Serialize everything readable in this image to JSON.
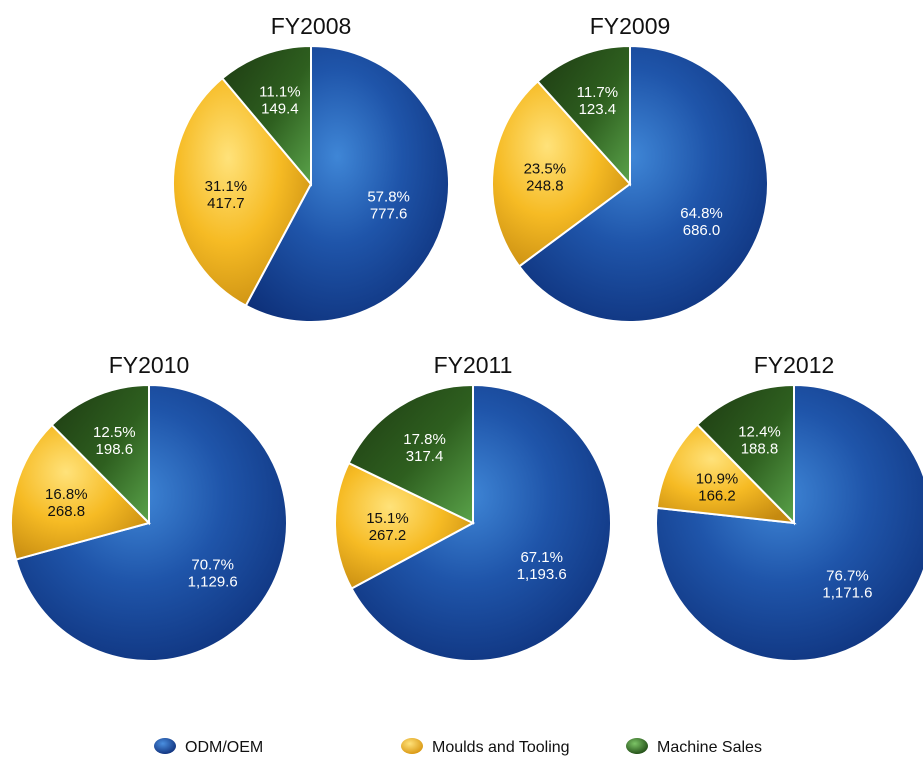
{
  "colors": {
    "odm_oem": "#1d4fa6",
    "moulds_tooling": "#f3b92a",
    "machine_sales": "#2f6a22"
  },
  "legend": [
    {
      "key": "odm_oem",
      "label": "ODM/OEM"
    },
    {
      "key": "moulds_tooling",
      "label": "Moulds and Tooling"
    },
    {
      "key": "machine_sales",
      "label": "Machine Sales"
    }
  ],
  "chart_data": {
    "type": "pie",
    "pies": [
      {
        "title": "FY2008",
        "slices": [
          {
            "key": "odm_oem",
            "percent_label": "57.8%",
            "value": 777.6,
            "value_label": "777.6"
          },
          {
            "key": "moulds_tooling",
            "percent_label": "31.1%",
            "value": 417.7,
            "value_label": "417.7"
          },
          {
            "key": "machine_sales",
            "percent_label": "11.1%",
            "value": 149.4,
            "value_label": "149.4"
          }
        ]
      },
      {
        "title": "FY2009",
        "slices": [
          {
            "key": "odm_oem",
            "percent_label": "64.8%",
            "value": 686.0,
            "value_label": "686.0"
          },
          {
            "key": "moulds_tooling",
            "percent_label": "23.5%",
            "value": 248.8,
            "value_label": "248.8"
          },
          {
            "key": "machine_sales",
            "percent_label": "11.7%",
            "value": 123.4,
            "value_label": "123.4"
          }
        ]
      },
      {
        "title": "FY2010",
        "slices": [
          {
            "key": "odm_oem",
            "percent_label": "70.7%",
            "value": 1129.6,
            "value_label": "1,129.6"
          },
          {
            "key": "moulds_tooling",
            "percent_label": "16.8%",
            "value": 268.8,
            "value_label": "268.8"
          },
          {
            "key": "machine_sales",
            "percent_label": "12.5%",
            "value": 198.6,
            "value_label": "198.6"
          }
        ]
      },
      {
        "title": "FY2011",
        "slices": [
          {
            "key": "odm_oem",
            "percent_label": "67.1%",
            "value": 1193.6,
            "value_label": "1,193.6"
          },
          {
            "key": "moulds_tooling",
            "percent_label": "15.1%",
            "value": 267.2,
            "value_label": "267.2"
          },
          {
            "key": "machine_sales",
            "percent_label": "17.8%",
            "value": 317.4,
            "value_label": "317.4"
          }
        ]
      },
      {
        "title": "FY2012",
        "slices": [
          {
            "key": "odm_oem",
            "percent_label": "76.7%",
            "value": 1171.6,
            "value_label": "1,171.6"
          },
          {
            "key": "moulds_tooling",
            "percent_label": "10.9%",
            "value": 166.2,
            "value_label": "166.2"
          },
          {
            "key": "machine_sales",
            "percent_label": "12.4%",
            "value": 188.8,
            "value_label": "188.8"
          }
        ]
      }
    ]
  }
}
